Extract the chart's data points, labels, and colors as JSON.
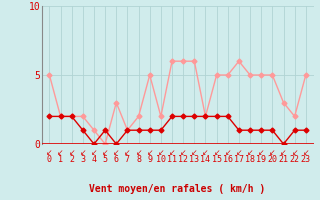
{
  "x": [
    0,
    1,
    2,
    3,
    4,
    5,
    6,
    7,
    8,
    9,
    10,
    11,
    12,
    13,
    14,
    15,
    16,
    17,
    18,
    19,
    20,
    21,
    22,
    23
  ],
  "vent_moyen": [
    2,
    2,
    2,
    1,
    0,
    1,
    0,
    1,
    1,
    1,
    1,
    2,
    2,
    2,
    2,
    2,
    2,
    1,
    1,
    1,
    1,
    0,
    1,
    1
  ],
  "rafales": [
    5,
    2,
    2,
    2,
    1,
    0,
    3,
    1,
    2,
    5,
    2,
    6,
    6,
    6,
    2,
    5,
    5,
    6,
    5,
    5,
    5,
    3,
    2,
    5
  ],
  "color_moyen": "#dd0000",
  "color_rafales": "#ff9999",
  "bg_color": "#d0ecec",
  "grid_color": "#b0d4d4",
  "xlabel": "Vent moyen/en rafales ( km/h )",
  "ylim": [
    0,
    10
  ],
  "yticks": [
    0,
    5,
    10
  ],
  "marker": "D",
  "marker_size": 2.5,
  "line_width": 1.0,
  "xlabel_color": "#cc0000",
  "xlabel_fontsize": 7,
  "tick_fontsize": 6,
  "ytick_fontsize": 7
}
